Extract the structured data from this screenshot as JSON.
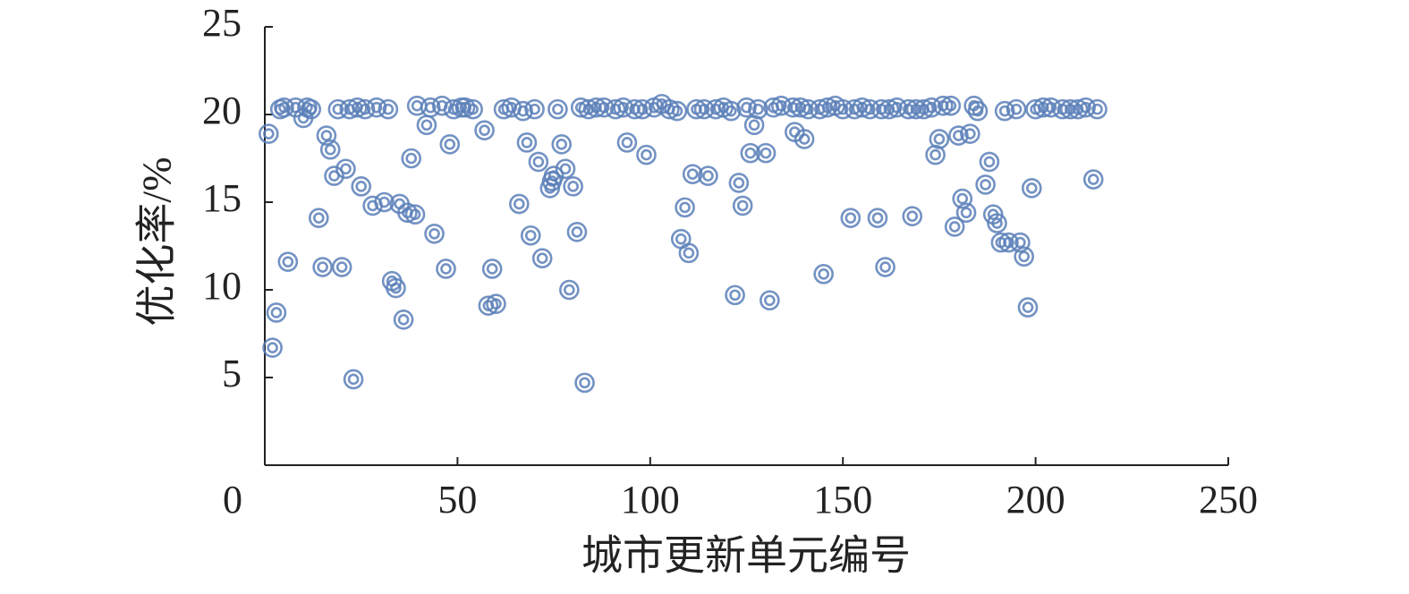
{
  "chart_data": {
    "type": "scatter",
    "x_label": "城市更新单元编号",
    "y_label": "优化率/%",
    "color": "#5b80b9",
    "xlim": [
      0,
      250
    ],
    "xticks": [
      0,
      50,
      100,
      150,
      200,
      250
    ],
    "ylim": [
      0,
      25
    ],
    "yticks": [
      5,
      10,
      15,
      20,
      25
    ],
    "grid": false,
    "x": [
      1,
      2,
      3,
      4,
      5,
      6,
      8,
      10,
      11,
      12,
      14,
      15,
      16,
      17,
      18,
      19,
      20,
      21,
      22,
      23,
      24,
      25,
      26,
      28,
      29,
      31,
      32,
      33,
      34,
      35,
      36,
      37,
      38,
      39,
      39.5,
      42,
      43,
      44,
      46,
      47,
      48,
      49,
      51,
      52,
      54,
      57,
      58,
      59,
      60,
      62,
      64,
      66,
      67,
      68,
      69,
      70,
      71,
      72,
      74,
      74.5,
      75,
      76,
      77,
      78,
      79,
      80,
      81,
      82,
      83,
      84,
      86,
      88,
      91,
      93,
      94,
      96,
      98,
      99,
      101,
      103,
      105,
      107,
      108,
      109,
      110,
      111,
      112,
      114,
      115,
      117,
      119,
      121,
      122,
      123,
      124,
      125,
      126,
      127,
      128,
      130,
      131,
      132,
      134,
      137,
      137.5,
      139,
      140,
      141,
      144,
      145,
      146,
      148,
      150,
      152,
      153,
      155,
      157,
      159,
      160,
      161,
      162,
      164,
      167,
      168,
      169,
      171,
      173,
      174,
      175,
      176,
      178,
      179,
      180,
      181,
      182,
      183,
      184,
      185,
      187,
      188,
      189,
      190,
      191,
      192,
      193,
      195,
      196,
      197,
      198,
      199,
      200,
      202,
      204,
      207,
      209,
      211,
      213,
      215,
      216
    ],
    "y": [
      18.9,
      6.7,
      8.7,
      20.3,
      20.4,
      11.6,
      20.4,
      19.8,
      20.4,
      20.3,
      14.1,
      11.3,
      18.8,
      18.0,
      16.5,
      20.3,
      11.3,
      16.9,
      20.3,
      4.9,
      20.4,
      15.9,
      20.3,
      14.8,
      20.4,
      15.0,
      20.3,
      10.5,
      10.1,
      14.9,
      8.3,
      14.4,
      17.5,
      14.3,
      20.5,
      19.4,
      20.4,
      13.2,
      20.5,
      11.2,
      18.3,
      20.3,
      20.4,
      20.4,
      20.3,
      19.1,
      9.1,
      11.2,
      9.2,
      20.3,
      20.4,
      14.9,
      20.2,
      18.4,
      13.1,
      20.3,
      17.3,
      11.8,
      15.8,
      16.2,
      16.5,
      20.3,
      18.3,
      16.9,
      10.0,
      15.9,
      13.3,
      20.4,
      4.7,
      20.3,
      20.4,
      20.4,
      20.3,
      20.4,
      18.4,
      20.3,
      20.3,
      17.7,
      20.4,
      20.6,
      20.3,
      20.2,
      12.9,
      14.7,
      12.1,
      16.6,
      20.3,
      20.3,
      16.5,
      20.3,
      20.4,
      20.2,
      9.7,
      16.1,
      14.8,
      20.4,
      17.8,
      19.4,
      20.3,
      17.8,
      9.4,
      20.4,
      20.5,
      20.4,
      19.0,
      20.4,
      18.6,
      20.3,
      20.3,
      10.9,
      20.4,
      20.5,
      20.3,
      14.1,
      20.3,
      20.4,
      20.3,
      14.1,
      20.3,
      11.3,
      20.3,
      20.4,
      20.3,
      14.2,
      20.3,
      20.3,
      20.4,
      17.7,
      18.6,
      20.5,
      20.5,
      13.6,
      18.8,
      15.2,
      14.4,
      18.9,
      20.5,
      20.2,
      16.0,
      17.3,
      14.3,
      13.8,
      12.7,
      20.2,
      12.7,
      20.3,
      12.7,
      11.9,
      9.0,
      15.8,
      20.3,
      20.4,
      20.4,
      20.3,
      20.3,
      20.3,
      20.4,
      16.3,
      20.3
    ]
  }
}
